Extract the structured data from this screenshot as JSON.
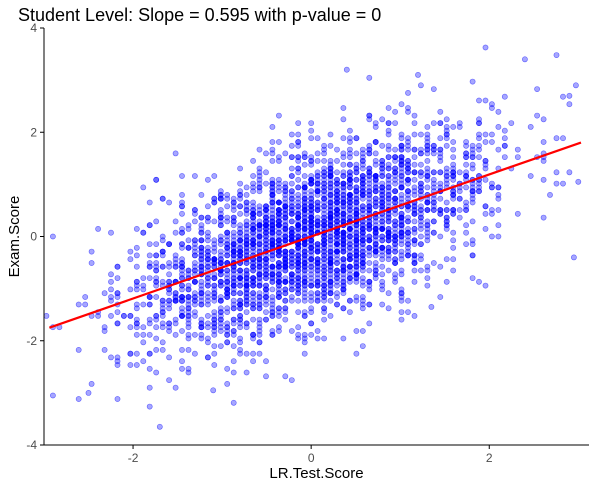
{
  "chart_data": {
    "type": "scatter",
    "title": "Student Level:  Slope = 0.595 with p-value = 0",
    "xlabel": "LR.Test.Score",
    "ylabel": "Exam.Score",
    "xlim": [
      -3.0,
      3.12
    ],
    "ylim": [
      -4.0,
      4.0
    ],
    "x_ticks": [
      -2,
      0,
      2
    ],
    "y_ticks": [
      -4,
      -2,
      0,
      2,
      4
    ],
    "grid": false,
    "legend": "none",
    "point_color": "#0000ff",
    "point_alpha": 0.35,
    "line_color": "#ff0000",
    "n_points": 3000,
    "regression": {
      "slope": 0.595,
      "intercept": 0.0,
      "x_range": [
        -2.94,
        3.03
      ]
    },
    "points_sample": [
      {
        "x": 2.9,
        "y": 2.7
      },
      {
        "x": 2.4,
        "y": 3.4
      },
      {
        "x": -1.7,
        "y": -3.65
      },
      {
        "x": -2.9,
        "y": -3.05
      },
      {
        "x": -2.5,
        "y": -3.0
      },
      {
        "x": 0.4,
        "y": 3.2
      },
      {
        "x": 1.2,
        "y": 3.1
      },
      {
        "x": 2.95,
        "y": -0.4
      },
      {
        "x": -2.9,
        "y": 0.0
      },
      {
        "x": -1.1,
        "y": -2.95
      },
      {
        "x": 1.35,
        "y": -1.35
      },
      {
        "x": 3.0,
        "y": 1.05
      }
    ]
  },
  "colors": {
    "background": "#ffffff",
    "axis": "#000000",
    "tick_text": "#4d4d4d"
  }
}
